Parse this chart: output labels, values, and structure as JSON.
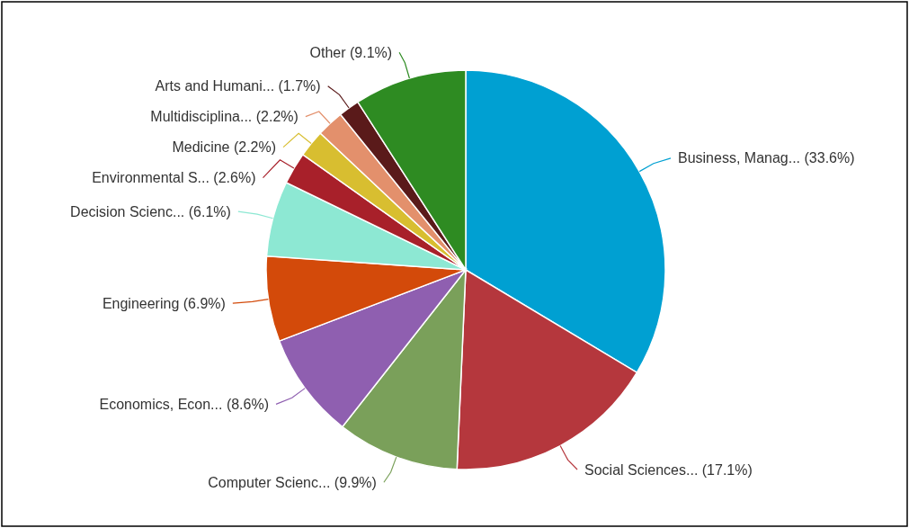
{
  "chart_data": {
    "type": "pie",
    "categories": [
      "Business, Manag... (33.6%)",
      "Social Sciences... (17.1%)",
      "Computer Scienc... (9.9%)",
      "Economics, Econ... (8.6%)",
      "Engineering (6.9%)",
      "Decision Scienc... (6.1%)",
      "Environmental S... (2.6%)",
      "Medicine (2.2%)",
      "Multidisciplina... (2.2%)",
      "Arts and Humani... (1.7%)",
      "Other (9.1%)"
    ],
    "values": [
      33.6,
      17.1,
      9.9,
      8.6,
      6.9,
      6.1,
      2.6,
      2.2,
      2.2,
      1.7,
      9.1
    ],
    "colors": [
      "#00a0d2",
      "#b5373d",
      "#7aa05a",
      "#8f5fb0",
      "#d34a0a",
      "#8de8d3",
      "#a8202a",
      "#d8be30",
      "#e3906c",
      "#5a1a1a",
      "#2e8b22"
    ]
  }
}
